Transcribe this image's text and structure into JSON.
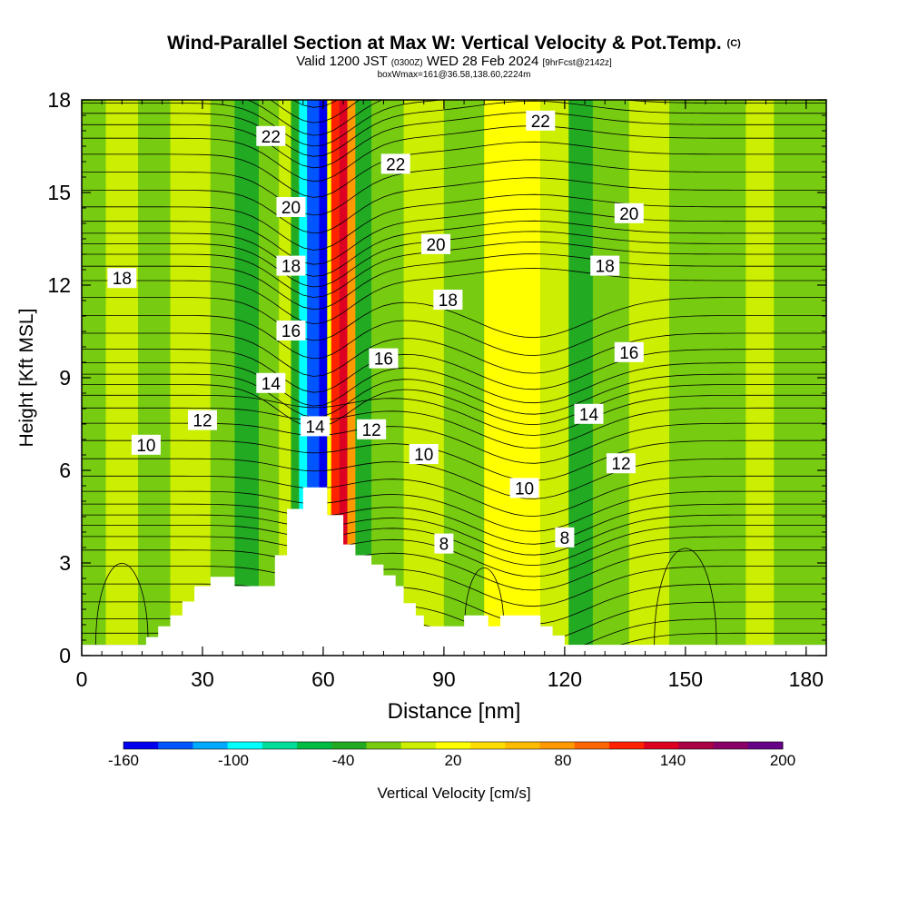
{
  "header": {
    "title": "Wind-Parallel Section at Max W: Vertical Velocity & Pot.Temp.",
    "copyright": "(C)",
    "valid_prefix": "Valid 1200 JST",
    "valid_utc": "(0300Z)",
    "valid_date": "WED 28 Feb 2024",
    "forecast": "[9hrFcst@2142z]",
    "boxline": "boxWmax=161@36.58,138.60,2224m"
  },
  "chart_data": {
    "type": "cross-section contour",
    "xlabel": "Distance [nm]",
    "ylabel": "Height [Kft MSL]",
    "xlim": [
      0,
      185
    ],
    "ylim": [
      0,
      18
    ],
    "xticks": [
      0,
      30,
      60,
      90,
      120,
      150,
      180
    ],
    "yticks": [
      0,
      3,
      6,
      9,
      12,
      15,
      18
    ],
    "colorbar": {
      "label": "Vertical Velocity [cm/s]",
      "levels": [
        -160,
        -140,
        -120,
        -100,
        -80,
        -60,
        -40,
        -20,
        0,
        20,
        40,
        60,
        80,
        100,
        120,
        140,
        160,
        180,
        200
      ],
      "tick_labels": [
        "-160",
        "-100",
        "-40",
        "20",
        "80",
        "140",
        "200"
      ],
      "colors": [
        "#0000ee",
        "#0055ff",
        "#00aaff",
        "#00ffff",
        "#00dd99",
        "#00bb44",
        "#22aa22",
        "#77cc11",
        "#ccee00",
        "#ffff00",
        "#ffdd00",
        "#ffbb00",
        "#ff9900",
        "#ff6600",
        "#ff2200",
        "#dd0022",
        "#aa0044",
        "#880066",
        "#660088"
      ]
    },
    "velocity_columns": [
      {
        "x": 0,
        "cat": "green"
      },
      {
        "x": 6,
        "cat": "light"
      },
      {
        "x": 14,
        "cat": "green"
      },
      {
        "x": 22,
        "cat": "light"
      },
      {
        "x": 32,
        "cat": "green"
      },
      {
        "x": 38,
        "cat": "darkgreen"
      },
      {
        "x": 44,
        "cat": "green"
      },
      {
        "x": 49,
        "cat": "light"
      },
      {
        "x": 52,
        "cat": "darkgreen"
      },
      {
        "x": 54,
        "cat": "cyan"
      },
      {
        "x": 56,
        "cat": "blue"
      },
      {
        "x": 59,
        "cat": "navy"
      },
      {
        "x": 61,
        "cat": "yellow"
      },
      {
        "x": 62,
        "cat": "red"
      },
      {
        "x": 64,
        "cat": "darkred"
      },
      {
        "x": 66,
        "cat": "orange"
      },
      {
        "x": 68,
        "cat": "darkgreen"
      },
      {
        "x": 72,
        "cat": "green"
      },
      {
        "x": 80,
        "cat": "light"
      },
      {
        "x": 90,
        "cat": "green"
      },
      {
        "x": 100,
        "cat": "yellow"
      },
      {
        "x": 114,
        "cat": "light"
      },
      {
        "x": 121,
        "cat": "darkgreen"
      },
      {
        "x": 127,
        "cat": "green"
      },
      {
        "x": 136,
        "cat": "light"
      },
      {
        "x": 146,
        "cat": "green"
      },
      {
        "x": 165,
        "cat": "light"
      },
      {
        "x": 172,
        "cat": "green"
      }
    ],
    "terrain": [
      [
        0,
        0.35
      ],
      [
        16,
        0.35
      ],
      [
        16,
        0.6
      ],
      [
        19,
        0.6
      ],
      [
        19,
        0.95
      ],
      [
        22,
        0.95
      ],
      [
        22,
        1.3
      ],
      [
        25,
        1.3
      ],
      [
        25,
        1.75
      ],
      [
        28,
        1.75
      ],
      [
        28,
        2.25
      ],
      [
        32,
        2.25
      ],
      [
        32,
        2.55
      ],
      [
        38,
        2.55
      ],
      [
        38,
        2.25
      ],
      [
        48,
        2.25
      ],
      [
        48,
        3.25
      ],
      [
        51,
        3.25
      ],
      [
        51,
        4.75
      ],
      [
        55,
        4.75
      ],
      [
        55,
        5.45
      ],
      [
        61,
        5.45
      ],
      [
        61,
        4.55
      ],
      [
        65,
        4.55
      ],
      [
        65,
        3.6
      ],
      [
        68,
        3.6
      ],
      [
        68,
        3.25
      ],
      [
        72,
        3.25
      ],
      [
        72,
        2.95
      ],
      [
        75,
        2.95
      ],
      [
        75,
        2.6
      ],
      [
        78,
        2.6
      ],
      [
        78,
        2.25
      ],
      [
        80,
        2.25
      ],
      [
        80,
        1.7
      ],
      [
        83,
        1.7
      ],
      [
        83,
        1.3
      ],
      [
        85,
        1.3
      ],
      [
        85,
        0.95
      ],
      [
        95,
        0.95
      ],
      [
        95,
        1.3
      ],
      [
        101,
        1.3
      ],
      [
        101,
        0.95
      ],
      [
        104,
        0.95
      ],
      [
        104,
        1.3
      ],
      [
        114,
        1.3
      ],
      [
        114,
        0.95
      ],
      [
        117,
        0.95
      ],
      [
        117,
        0.65
      ],
      [
        120,
        0.65
      ],
      [
        120,
        0.35
      ],
      [
        185,
        0.35
      ]
    ],
    "theta_label_positions": [
      {
        "label": "22",
        "x": 47,
        "y": 16.8
      },
      {
        "label": "22",
        "x": 78,
        "y": 15.9
      },
      {
        "label": "22",
        "x": 114,
        "y": 17.3
      },
      {
        "label": "20",
        "x": 52,
        "y": 14.5
      },
      {
        "label": "20",
        "x": 88,
        "y": 13.3
      },
      {
        "label": "20",
        "x": 136,
        "y": 14.3
      },
      {
        "label": "18",
        "x": 10,
        "y": 12.2
      },
      {
        "label": "18",
        "x": 52,
        "y": 12.6
      },
      {
        "label": "18",
        "x": 91,
        "y": 11.5
      },
      {
        "label": "18",
        "x": 130,
        "y": 12.6
      },
      {
        "label": "16",
        "x": 52,
        "y": 10.5
      },
      {
        "label": "16",
        "x": 75,
        "y": 9.6
      },
      {
        "label": "16",
        "x": 136,
        "y": 9.8
      },
      {
        "label": "14",
        "x": 47,
        "y": 8.8
      },
      {
        "label": "14",
        "x": 58,
        "y": 7.4
      },
      {
        "label": "14",
        "x": 126,
        "y": 7.8
      },
      {
        "label": "12",
        "x": 30,
        "y": 7.6
      },
      {
        "label": "12",
        "x": 72,
        "y": 7.3
      },
      {
        "label": "12",
        "x": 134,
        "y": 6.2
      },
      {
        "label": "10",
        "x": 16,
        "y": 6.8
      },
      {
        "label": "10",
        "x": 85,
        "y": 6.5
      },
      {
        "label": "10",
        "x": 110,
        "y": 5.4
      },
      {
        "label": "8",
        "x": 90,
        "y": 3.6
      },
      {
        "label": "8",
        "x": 120,
        "y": 3.8
      }
    ]
  }
}
